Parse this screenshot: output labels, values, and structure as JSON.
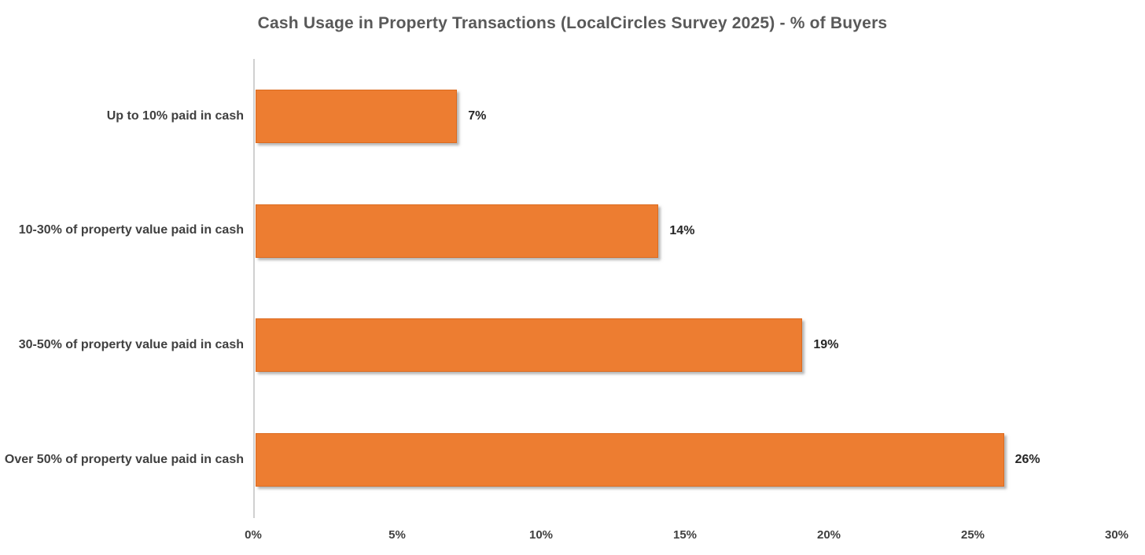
{
  "chart_data": {
    "type": "bar",
    "orientation": "horizontal",
    "title": "Cash Usage in Property Transactions (LocalCircles Survey 2025) - % of Buyers",
    "categories": [
      "Up to 10% paid in cash",
      "10-30% of property value paid in cash",
      "30-50% of property value paid in cash",
      "Over 50% of property value paid in cash"
    ],
    "values": [
      7,
      14,
      19,
      26
    ],
    "data_labels": [
      "7%",
      "14%",
      "19%",
      "26%"
    ],
    "xlabel": "",
    "ylabel": "",
    "xlim": [
      0,
      30
    ],
    "x_tick_values": [
      0,
      5,
      10,
      15,
      20,
      25,
      30
    ],
    "x_tick_labels": [
      "0%",
      "5%",
      "10%",
      "15%",
      "20%",
      "25%",
      "30%"
    ],
    "grid": false,
    "legend": false,
    "bar_color": "#ED7D31",
    "bar_border_color": "#DC6B1F",
    "axis_line_color": "#D0D0D0",
    "title_color": "#595959",
    "label_color": "#404040",
    "data_label_color": "#262626",
    "background_color": "#FFFFFF"
  }
}
